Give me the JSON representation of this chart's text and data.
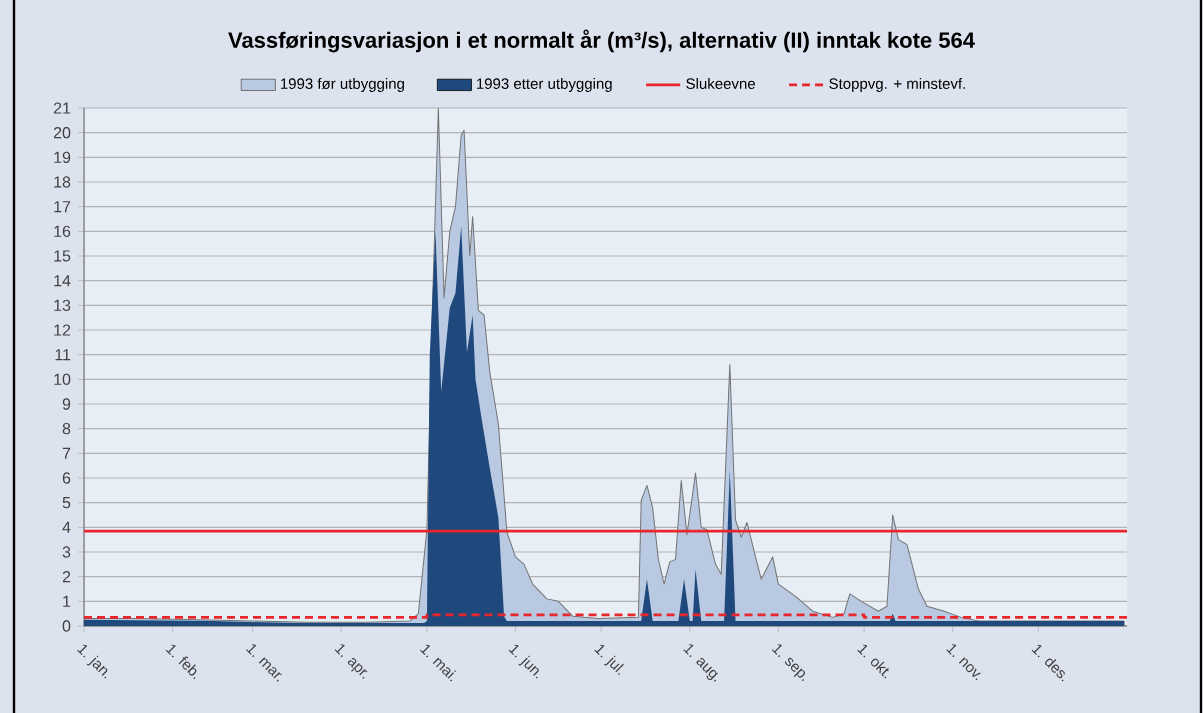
{
  "chart_data": {
    "type": "area",
    "title": "Vassføringsvariasjon i et normalt år (m³/s), alternativ (II) inntak kote 564",
    "xlim": [
      "1993-01-01",
      "1994-01-01"
    ],
    "xticks": [
      {
        "value": "1993-01-01",
        "label": "1. jan."
      },
      {
        "value": "1993-02-01",
        "label": "1. feb."
      },
      {
        "value": "1993-03-01",
        "label": "1. mar."
      },
      {
        "value": "1993-04-01",
        "label": "1. apr."
      },
      {
        "value": "1993-05-01",
        "label": "1. mai."
      },
      {
        "value": "1993-06-01",
        "label": "1. jun."
      },
      {
        "value": "1993-07-01",
        "label": "1. jul."
      },
      {
        "value": "1993-08-01",
        "label": "1. aug."
      },
      {
        "value": "1993-09-01",
        "label": "1. sep."
      },
      {
        "value": "1993-10-01",
        "label": "1. okt."
      },
      {
        "value": "1993-11-01",
        "label": "1. nov."
      },
      {
        "value": "1993-12-01",
        "label": "1. des."
      }
    ],
    "ylim": [
      0,
      21
    ],
    "yticks": [
      0,
      1,
      2,
      3,
      4,
      5,
      6,
      7,
      8,
      9,
      10,
      11,
      12,
      13,
      14,
      15,
      16,
      17,
      18,
      19,
      20,
      21
    ],
    "grid": "y",
    "legend": "top",
    "series": [
      {
        "name": "1993 før utbygging",
        "color": "#b8c9e1",
        "x": [
          "1993-01-01",
          "1993-01-20",
          "1993-02-10",
          "1993-03-01",
          "1993-03-20",
          "1993-04-10",
          "1993-04-25",
          "1993-04-28",
          "1993-05-01",
          "1993-05-03",
          "1993-05-05",
          "1993-05-07",
          "1993-05-09",
          "1993-05-11",
          "1993-05-13",
          "1993-05-14",
          "1993-05-16",
          "1993-05-17",
          "1993-05-19",
          "1993-05-21",
          "1993-05-23",
          "1993-05-26",
          "1993-05-29",
          "1993-06-01",
          "1993-06-04",
          "1993-06-07",
          "1993-06-12",
          "1993-06-16",
          "1993-06-21",
          "1993-06-30",
          "1993-07-14",
          "1993-07-15",
          "1993-07-17",
          "1993-07-19",
          "1993-07-21",
          "1993-07-23",
          "1993-07-25",
          "1993-07-27",
          "1993-07-29",
          "1993-07-31",
          "1993-08-03",
          "1993-08-05",
          "1993-08-07",
          "1993-08-10",
          "1993-08-12",
          "1993-08-15",
          "1993-08-17",
          "1993-08-19",
          "1993-08-21",
          "1993-08-24",
          "1993-08-26",
          "1993-08-30",
          "1993-09-01",
          "1993-09-07",
          "1993-09-13",
          "1993-09-20",
          "1993-09-24",
          "1993-09-26",
          "1993-09-30",
          "1993-10-06",
          "1993-10-09",
          "1993-10-11",
          "1993-10-13",
          "1993-10-16",
          "1993-10-20",
          "1993-10-23",
          "1993-10-29",
          "1993-11-04",
          "1993-11-10",
          "1993-12-31"
        ],
        "values": [
          0.3,
          0.3,
          0.25,
          0.2,
          0.15,
          0.15,
          0.2,
          0.5,
          3.9,
          13.2,
          21.0,
          13.3,
          16.0,
          17.0,
          19.9,
          20.1,
          15.0,
          16.6,
          12.8,
          12.6,
          10.3,
          8.2,
          3.8,
          2.8,
          2.5,
          1.7,
          1.1,
          1.0,
          0.4,
          0.3,
          0.35,
          5.1,
          5.7,
          4.8,
          2.7,
          1.7,
          2.6,
          2.7,
          5.9,
          3.7,
          6.2,
          4.0,
          3.9,
          2.5,
          2.1,
          10.6,
          4.3,
          3.6,
          4.2,
          2.8,
          1.9,
          2.8,
          1.7,
          1.2,
          0.6,
          0.35,
          0.5,
          1.3,
          1.0,
          0.6,
          0.8,
          4.5,
          3.5,
          3.3,
          1.5,
          0.8,
          0.6,
          0.35,
          0.2,
          0.2
        ]
      },
      {
        "name": "1993 etter utbygging",
        "color": "#1f497d",
        "x": [
          "1993-01-01",
          "1993-02-15",
          "1993-03-15",
          "1993-04-30",
          "1993-05-01",
          "1993-05-02",
          "1993-05-04",
          "1993-05-06",
          "1993-05-09",
          "1993-05-11",
          "1993-05-13",
          "1993-05-15",
          "1993-05-17",
          "1993-05-18",
          "1993-05-20",
          "1993-05-23",
          "1993-05-26",
          "1993-05-28",
          "1993-05-29",
          "1993-07-15",
          "1993-07-17",
          "1993-07-19",
          "1993-07-28",
          "1993-07-30",
          "1993-08-01",
          "1993-08-02",
          "1993-08-03",
          "1993-08-05",
          "1993-08-13",
          "1993-08-15",
          "1993-08-17",
          "1993-10-10",
          "1993-10-11",
          "1993-10-12",
          "1993-12-31"
        ],
        "values": [
          0.25,
          0.2,
          0.12,
          0.12,
          0.2,
          11.0,
          16.0,
          9.5,
          12.9,
          13.5,
          16.2,
          11.1,
          12.6,
          10.0,
          8.5,
          6.4,
          4.4,
          0.4,
          0.2,
          0.2,
          1.9,
          0.2,
          0.2,
          1.9,
          0.2,
          0.2,
          2.3,
          0.2,
          0.2,
          6.3,
          0.2,
          0.2,
          0.5,
          0.2,
          0.2
        ]
      },
      {
        "name": "Slukeevne",
        "type": "line",
        "color": "#e8262b",
        "line_style": "solid",
        "x": [
          "1993-01-01",
          "1994-01-01"
        ],
        "values": [
          3.85,
          3.85
        ]
      },
      {
        "name": "Stoppvg. + minstevf.",
        "type": "line",
        "color": "#e8262b",
        "line_style": "dashed",
        "x": [
          "1993-01-01",
          "1993-05-01",
          "1993-05-01",
          "1993-10-01",
          "1993-10-01",
          "1994-01-01"
        ],
        "values": [
          0.35,
          0.35,
          0.45,
          0.45,
          0.35,
          0.35
        ]
      }
    ]
  }
}
